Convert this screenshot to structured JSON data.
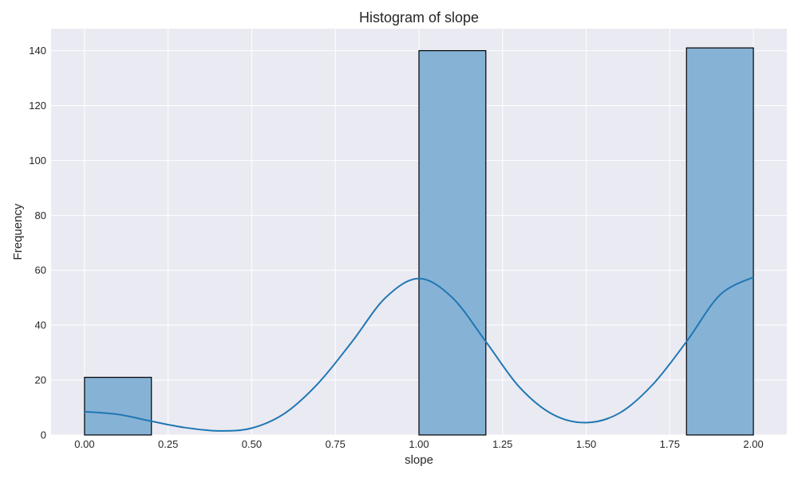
{
  "chart_data": {
    "type": "bar",
    "title": "Histogram of slope",
    "xlabel": "slope",
    "ylabel": "Frequency",
    "xlim": [
      -0.1,
      2.1
    ],
    "ylim": [
      0,
      148
    ],
    "xticks": [
      0.0,
      0.25,
      0.5,
      0.75,
      1.0,
      1.25,
      1.5,
      1.75,
      2.0
    ],
    "xtick_labels": [
      "0.00",
      "0.25",
      "0.50",
      "0.75",
      "1.00",
      "1.25",
      "1.50",
      "1.75",
      "2.00"
    ],
    "yticks": [
      0,
      20,
      40,
      60,
      80,
      100,
      120,
      140
    ],
    "ytick_labels": [
      "0",
      "20",
      "40",
      "60",
      "80",
      "100",
      "120",
      "140"
    ],
    "grid": true,
    "bins": [
      {
        "x0": 0.0,
        "x1": 0.2,
        "count": 21
      },
      {
        "x0": 0.2,
        "x1": 0.4,
        "count": 0
      },
      {
        "x0": 0.4,
        "x1": 0.6,
        "count": 0
      },
      {
        "x0": 0.6,
        "x1": 0.8,
        "count": 0
      },
      {
        "x0": 0.8,
        "x1": 1.0,
        "count": 0
      },
      {
        "x0": 1.0,
        "x1": 1.2,
        "count": 140
      },
      {
        "x0": 1.2,
        "x1": 1.4,
        "count": 0
      },
      {
        "x0": 1.4,
        "x1": 1.6,
        "count": 0
      },
      {
        "x0": 1.6,
        "x1": 1.8,
        "count": 0
      },
      {
        "x0": 1.8,
        "x1": 2.0,
        "count": 141
      }
    ],
    "kde": {
      "x": [
        0.0,
        0.1,
        0.2,
        0.3,
        0.4,
        0.5,
        0.6,
        0.7,
        0.8,
        0.9,
        1.0,
        1.1,
        1.2,
        1.3,
        1.4,
        1.5,
        1.6,
        1.7,
        1.8,
        1.9,
        2.0
      ],
      "y": [
        8.5,
        7.5,
        5.0,
        2.7,
        1.5,
        2.5,
        8.0,
        19.0,
        34.0,
        50.0,
        57.0,
        50.0,
        34.0,
        17.5,
        7.5,
        4.5,
        8.0,
        18.5,
        34.0,
        51.0,
        57.5
      ]
    },
    "colors": {
      "background": "#eaeaf2",
      "grid": "#ffffff",
      "bar_fill": "#86b2d5",
      "bar_edge": "#000000",
      "kde_line": "#1f77b4",
      "text": "#262626"
    }
  }
}
